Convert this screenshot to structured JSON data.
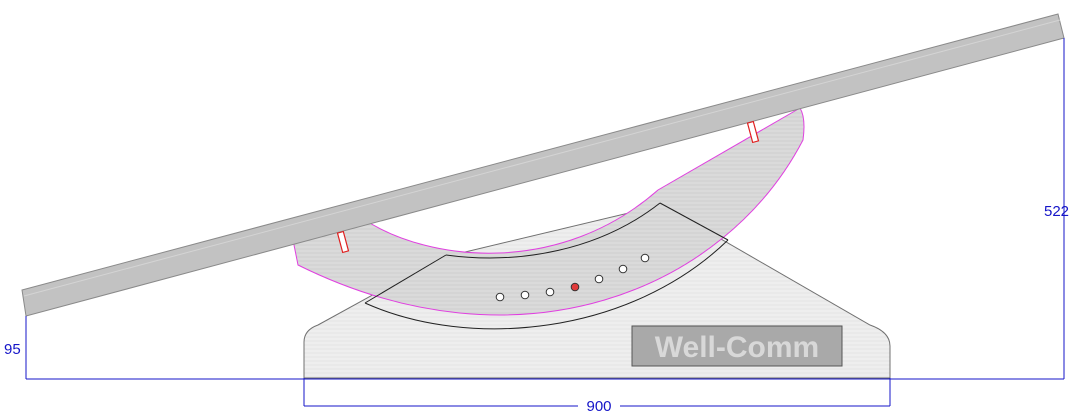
{
  "drawing": {
    "dimensions": {
      "base_width": "900",
      "top_height": "522",
      "bottom_height": "95"
    },
    "logo": {
      "text": "Well-Comm"
    },
    "indicators": {
      "count": 7,
      "active_index": 3
    },
    "colors": {
      "dimension": "#1515c8",
      "beam": "#c2c2c2",
      "cradle": "#d9d9d9",
      "base": "#ececec",
      "cradle_edge": "#e040e0",
      "active_dot": "#e03a3a",
      "marker": "#e02020"
    }
  }
}
